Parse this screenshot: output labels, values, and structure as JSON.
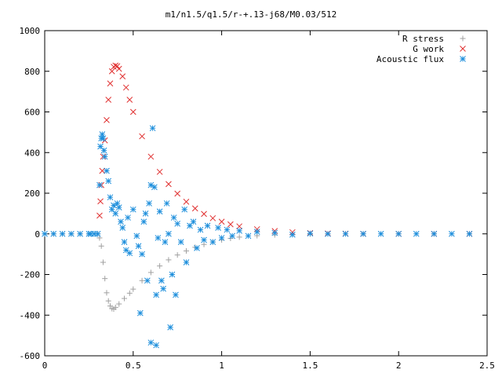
{
  "chart_data": {
    "type": "scatter",
    "title": "m1/n1.5/q1.5/r-+.13-j68/M0.03/512",
    "xlabel": "",
    "ylabel": "",
    "xlim": [
      0,
      2.5
    ],
    "ylim": [
      -600,
      1000
    ],
    "x_ticks": [
      "0",
      "0.5",
      "1",
      "1.5",
      "2",
      "2.5"
    ],
    "y_ticks": [
      "-600",
      "-400",
      "-200",
      "0",
      "200",
      "400",
      "600",
      "800",
      "1000"
    ],
    "grid": false,
    "legend_position": "top-right",
    "series": [
      {
        "name": "R stress",
        "marker": "plus",
        "color": "#a0a0a0",
        "points": [
          [
            0.0,
            0
          ],
          [
            0.05,
            0
          ],
          [
            0.1,
            0
          ],
          [
            0.15,
            0
          ],
          [
            0.2,
            0
          ],
          [
            0.25,
            0
          ],
          [
            0.3,
            0
          ],
          [
            0.31,
            -20
          ],
          [
            0.32,
            -60
          ],
          [
            0.33,
            -140
          ],
          [
            0.34,
            -220
          ],
          [
            0.35,
            -290
          ],
          [
            0.36,
            -330
          ],
          [
            0.37,
            -355
          ],
          [
            0.38,
            -368
          ],
          [
            0.39,
            -370
          ],
          [
            0.4,
            -362
          ],
          [
            0.42,
            -345
          ],
          [
            0.45,
            -318
          ],
          [
            0.48,
            -292
          ],
          [
            0.5,
            -272
          ],
          [
            0.55,
            -230
          ],
          [
            0.6,
            -190
          ],
          [
            0.65,
            -158
          ],
          [
            0.7,
            -128
          ],
          [
            0.75,
            -104
          ],
          [
            0.8,
            -84
          ],
          [
            0.85,
            -66
          ],
          [
            0.9,
            -52
          ],
          [
            0.95,
            -40
          ],
          [
            1.0,
            -30
          ],
          [
            1.05,
            -22
          ],
          [
            1.1,
            -16
          ],
          [
            1.2,
            -9
          ],
          [
            1.3,
            -5
          ],
          [
            1.4,
            -3
          ],
          [
            1.5,
            -1
          ],
          [
            1.6,
            0
          ],
          [
            1.8,
            0
          ],
          [
            2.0,
            0
          ],
          [
            2.2,
            0
          ],
          [
            2.4,
            0
          ]
        ]
      },
      {
        "name": "G work",
        "marker": "cross",
        "color": "#e03030",
        "points": [
          [
            0.31,
            90
          ],
          [
            0.315,
            160
          ],
          [
            0.32,
            240
          ],
          [
            0.325,
            310
          ],
          [
            0.33,
            380
          ],
          [
            0.34,
            460
          ],
          [
            0.35,
            560
          ],
          [
            0.36,
            660
          ],
          [
            0.37,
            740
          ],
          [
            0.38,
            800
          ],
          [
            0.39,
            822
          ],
          [
            0.4,
            828
          ],
          [
            0.41,
            825
          ],
          [
            0.42,
            812
          ],
          [
            0.44,
            775
          ],
          [
            0.46,
            720
          ],
          [
            0.48,
            660
          ],
          [
            0.5,
            600
          ],
          [
            0.55,
            480
          ],
          [
            0.6,
            380
          ],
          [
            0.65,
            305
          ],
          [
            0.7,
            245
          ],
          [
            0.75,
            198
          ],
          [
            0.8,
            158
          ],
          [
            0.85,
            125
          ],
          [
            0.9,
            98
          ],
          [
            0.95,
            77
          ],
          [
            1.0,
            60
          ],
          [
            1.05,
            47
          ],
          [
            1.1,
            37
          ],
          [
            1.2,
            23
          ],
          [
            1.3,
            14
          ],
          [
            1.4,
            8
          ],
          [
            1.5,
            4
          ],
          [
            1.6,
            2
          ],
          [
            1.7,
            1
          ],
          [
            1.8,
            0
          ],
          [
            2.0,
            0
          ],
          [
            2.2,
            0
          ],
          [
            2.4,
            0
          ]
        ]
      },
      {
        "name": "Acoustic flux",
        "marker": "star",
        "color": "#1e8fdc",
        "points": [
          [
            0.0,
            0
          ],
          [
            0.05,
            0
          ],
          [
            0.1,
            0
          ],
          [
            0.15,
            0
          ],
          [
            0.2,
            0
          ],
          [
            0.25,
            0
          ],
          [
            0.3,
            0
          ],
          [
            0.31,
            240
          ],
          [
            0.315,
            430
          ],
          [
            0.32,
            470
          ],
          [
            0.325,
            490
          ],
          [
            0.33,
            470
          ],
          [
            0.335,
            410
          ],
          [
            0.34,
            380
          ],
          [
            0.35,
            310
          ],
          [
            0.36,
            260
          ],
          [
            0.37,
            180
          ],
          [
            0.38,
            120
          ],
          [
            0.39,
            140
          ],
          [
            0.4,
            100
          ],
          [
            0.41,
            150
          ],
          [
            0.42,
            130
          ],
          [
            0.43,
            60
          ],
          [
            0.44,
            30
          ],
          [
            0.45,
            -40
          ],
          [
            0.46,
            -80
          ],
          [
            0.47,
            80
          ],
          [
            0.48,
            -95
          ],
          [
            0.5,
            120
          ],
          [
            0.52,
            -10
          ],
          [
            0.53,
            -60
          ],
          [
            0.54,
            -390
          ],
          [
            0.55,
            -100
          ],
          [
            0.56,
            60
          ],
          [
            0.57,
            100
          ],
          [
            0.58,
            -230
          ],
          [
            0.59,
            150
          ],
          [
            0.6,
            240
          ],
          [
            0.61,
            520
          ],
          [
            0.62,
            230
          ],
          [
            0.63,
            -300
          ],
          [
            0.64,
            -20
          ],
          [
            0.65,
            110
          ],
          [
            0.66,
            -230
          ],
          [
            0.67,
            -270
          ],
          [
            0.68,
            -40
          ],
          [
            0.69,
            150
          ],
          [
            0.7,
            0
          ],
          [
            0.71,
            -460
          ],
          [
            0.72,
            -200
          ],
          [
            0.73,
            80
          ],
          [
            0.74,
            -300
          ],
          [
            0.75,
            50
          ],
          [
            0.77,
            -40
          ],
          [
            0.79,
            120
          ],
          [
            0.8,
            -140
          ],
          [
            0.82,
            40
          ],
          [
            0.84,
            60
          ],
          [
            0.86,
            -70
          ],
          [
            0.88,
            20
          ],
          [
            0.9,
            -30
          ],
          [
            0.92,
            40
          ],
          [
            0.95,
            -40
          ],
          [
            0.98,
            30
          ],
          [
            1.0,
            -20
          ],
          [
            1.03,
            20
          ],
          [
            1.06,
            -10
          ],
          [
            1.1,
            15
          ],
          [
            1.15,
            -10
          ],
          [
            1.2,
            10
          ],
          [
            1.3,
            5
          ],
          [
            1.4,
            -4
          ],
          [
            1.5,
            2
          ],
          [
            1.6,
            0
          ],
          [
            1.7,
            0
          ],
          [
            1.8,
            0
          ],
          [
            1.9,
            0
          ],
          [
            2.0,
            0
          ],
          [
            2.1,
            0
          ],
          [
            2.2,
            0
          ],
          [
            2.3,
            0
          ],
          [
            2.4,
            0
          ],
          [
            0.6,
            -535
          ],
          [
            0.63,
            -548
          ],
          [
            0.26,
            0
          ],
          [
            0.28,
            0
          ]
        ]
      }
    ]
  }
}
